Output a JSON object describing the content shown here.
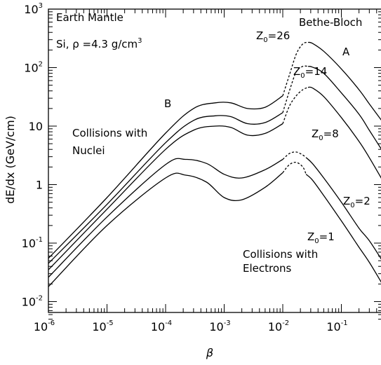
{
  "chart_data": {
    "type": "line",
    "x_scale": "log",
    "y_scale": "log",
    "xlim": [
      1e-06,
      1
    ],
    "ylim": [
      0.005,
      1000
    ],
    "xlabel": "β",
    "ylabel": "dE/dx (GeV/cm)",
    "x_ticks": [
      {
        "base": "10",
        "exp": "-6",
        "value": 1e-06
      },
      {
        "base": "10",
        "exp": "-5",
        "value": 1e-05
      },
      {
        "base": "10",
        "exp": "-4",
        "value": 0.0001
      },
      {
        "base": "10",
        "exp": "-3",
        "value": 0.001
      },
      {
        "base": "10",
        "exp": "-2",
        "value": 0.01
      },
      {
        "base": "10",
        "exp": "-1",
        "value": 0.1
      }
    ],
    "y_ticks": [
      {
        "base": "10",
        "exp": "-2",
        "value": 0.01
      },
      {
        "base": "10",
        "exp": "-1",
        "value": 0.1
      },
      {
        "base": "1",
        "exp": "",
        "value": 1
      },
      {
        "base": "10",
        "exp": "",
        "value": 10
      },
      {
        "base": "10",
        "exp": "2",
        "value": 100
      },
      {
        "base": "10",
        "exp": "3",
        "value": 1000
      }
    ],
    "annotations": {
      "earth_mantle": "Earth Mantle",
      "density_prefix": "Si, ρ =4.3 g/cm",
      "density_exp": "3",
      "bethe_bloch": "Bethe-Bloch",
      "label_a": "A",
      "label_b": "B",
      "nuclei_line1": "Collisions with",
      "nuclei_line2": "Nuclei",
      "electrons_line1": "Collisions with",
      "electrons_line2": "Electrons"
    },
    "series": [
      {
        "name": "Z₀=26",
        "z_prefix": "Z",
        "z_sub": "0",
        "z_value": "=26",
        "solid1": [
          [
            1e-06,
            0.055
          ],
          [
            1e-05,
            0.6
          ],
          [
            0.0001,
            7.6
          ],
          [
            0.0003,
            20
          ],
          [
            0.0007,
            25
          ],
          [
            0.0013,
            25
          ],
          [
            0.0025,
            20
          ],
          [
            0.005,
            21
          ],
          [
            0.01,
            33
          ]
        ],
        "dashed": [
          [
            0.01,
            33
          ],
          [
            0.013,
            75
          ],
          [
            0.017,
            170
          ],
          [
            0.022,
            255
          ],
          [
            0.027,
            270
          ]
        ],
        "solid2": [
          [
            0.027,
            270
          ],
          [
            0.032,
            260
          ],
          [
            0.05,
            190
          ],
          [
            0.1,
            95
          ],
          [
            0.2,
            42
          ],
          [
            0.3,
            24
          ],
          [
            0.5,
            12
          ]
        ]
      },
      {
        "name": "Z₀=14",
        "z_prefix": "Z",
        "z_sub": "0",
        "z_value": "=14",
        "solid1": [
          [
            1e-06,
            0.045
          ],
          [
            1e-05,
            0.46
          ],
          [
            0.0001,
            5.2
          ],
          [
            0.0003,
            12.5
          ],
          [
            0.0007,
            15
          ],
          [
            0.0013,
            14.5
          ],
          [
            0.0025,
            11
          ],
          [
            0.005,
            11.5
          ],
          [
            0.01,
            17
          ]
        ],
        "dashed": [
          [
            0.01,
            17
          ],
          [
            0.013,
            40
          ],
          [
            0.017,
            85
          ],
          [
            0.022,
            105
          ],
          [
            0.027,
            105
          ]
        ],
        "solid2": [
          [
            0.027,
            105
          ],
          [
            0.032,
            102
          ],
          [
            0.05,
            80
          ],
          [
            0.1,
            37
          ],
          [
            0.2,
            16
          ],
          [
            0.3,
            8.5
          ],
          [
            0.5,
            3.8
          ]
        ]
      },
      {
        "name": "Z₀=8",
        "z_prefix": "Z",
        "z_sub": "0",
        "z_value": "=8",
        "solid1": [
          [
            1e-06,
            0.035
          ],
          [
            1e-05,
            0.38
          ],
          [
            0.0001,
            4
          ],
          [
            0.0003,
            8.5
          ],
          [
            0.0007,
            10
          ],
          [
            0.0013,
            9.5
          ],
          [
            0.0025,
            7
          ],
          [
            0.005,
            7.5
          ],
          [
            0.01,
            11
          ]
        ],
        "dashed": [
          [
            0.01,
            11
          ],
          [
            0.013,
            22
          ],
          [
            0.017,
            33
          ],
          [
            0.022,
            42
          ],
          [
            0.027,
            46
          ]
        ],
        "solid2": [
          [
            0.027,
            46
          ],
          [
            0.032,
            45
          ],
          [
            0.05,
            32
          ],
          [
            0.1,
            14
          ],
          [
            0.2,
            5.5
          ],
          [
            0.3,
            2.9
          ],
          [
            0.5,
            1.2
          ]
        ]
      },
      {
        "name": "Z₀=2",
        "z_prefix": "Z",
        "z_sub": "0",
        "z_value": "=2",
        "solid1": [
          [
            1e-06,
            0.026
          ],
          [
            1e-05,
            0.28
          ],
          [
            0.0001,
            2.2
          ],
          [
            0.00022,
            2.7
          ],
          [
            0.0005,
            2.3
          ],
          [
            0.001,
            1.5
          ],
          [
            0.002,
            1.3
          ],
          [
            0.005,
            1.8
          ],
          [
            0.01,
            2.7
          ]
        ],
        "dashed": [
          [
            0.01,
            2.7
          ],
          [
            0.013,
            3.4
          ],
          [
            0.017,
            3.6
          ],
          [
            0.022,
            3.2
          ],
          [
            0.025,
            2.9
          ]
        ],
        "solid2": [
          [
            0.025,
            2.9
          ],
          [
            0.032,
            2.3
          ],
          [
            0.05,
            1.3
          ],
          [
            0.1,
            0.5
          ],
          [
            0.2,
            0.18
          ],
          [
            0.3,
            0.11
          ],
          [
            0.5,
            0.05
          ]
        ]
      },
      {
        "name": "Z₀=1",
        "z_prefix": "Z",
        "z_sub": "0",
        "z_value": "=1",
        "solid1": [
          [
            1e-06,
            0.018
          ],
          [
            1e-05,
            0.2
          ],
          [
            0.0001,
            1.3
          ],
          [
            0.00022,
            1.45
          ],
          [
            0.0005,
            1.1
          ],
          [
            0.001,
            0.6
          ],
          [
            0.002,
            0.55
          ],
          [
            0.005,
            0.9
          ],
          [
            0.01,
            1.6
          ]
        ],
        "dashed": [
          [
            0.01,
            1.6
          ],
          [
            0.013,
            2.2
          ],
          [
            0.017,
            2.4
          ],
          [
            0.022,
            2.0
          ],
          [
            0.025,
            1.5
          ]
        ],
        "solid2": [
          [
            0.025,
            1.5
          ],
          [
            0.032,
            1.2
          ],
          [
            0.05,
            0.65
          ],
          [
            0.1,
            0.24
          ],
          [
            0.2,
            0.085
          ],
          [
            0.3,
            0.047
          ],
          [
            0.5,
            0.02
          ]
        ]
      }
    ]
  }
}
